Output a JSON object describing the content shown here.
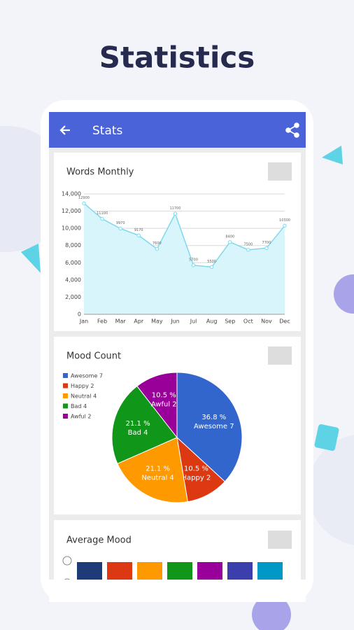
{
  "header": {
    "title": "Statistics"
  },
  "app_bar": {
    "title": "Stats"
  },
  "words_card": {
    "title": "Words Monthly",
    "chart_data": {
      "type": "line",
      "categories": [
        "Jan",
        "Feb",
        "Mar",
        "Apr",
        "May",
        "Jun",
        "Jul",
        "Aug",
        "Sep",
        "Oct",
        "Nov",
        "Dec"
      ],
      "values": [
        12900,
        11100,
        9970,
        9170,
        7600,
        11700,
        5700,
        5500,
        8400,
        7500,
        7700,
        10300
      ],
      "color": "#7fd8ec",
      "fill": "#d8f5fb",
      "ylim": [
        0,
        14000
      ],
      "yticks": [
        0,
        {
          "value": 2000,
          "label": "2,000"
        },
        {
          "value": 4000,
          "label": "4,000"
        },
        {
          "value": 6000,
          "label": "6,000"
        },
        {
          "value": 8000,
          "label": "8,000"
        },
        {
          "value": 10000,
          "label": "10,000"
        },
        {
          "value": 12000,
          "label": "12,000"
        },
        {
          "value": 14000,
          "label": "14,000"
        }
      ],
      "grid": true
    }
  },
  "mood_card": {
    "title": "Mood Count",
    "chart_data": {
      "type": "pie",
      "legend": [
        "Awesome 7",
        "Happy 2",
        "Neutral 4",
        "Bad 4",
        "Awful 2"
      ],
      "values": [
        7,
        2,
        4,
        4,
        2
      ],
      "percent_labels": [
        "36.8 %",
        "10.5 %",
        "21.1 %",
        "21.1 %",
        "10.5 %"
      ],
      "colors": [
        "#3366cc",
        "#dc3912",
        "#ff9900",
        "#109618",
        "#990099"
      ]
    }
  },
  "average_card": {
    "title": "Average Mood"
  }
}
